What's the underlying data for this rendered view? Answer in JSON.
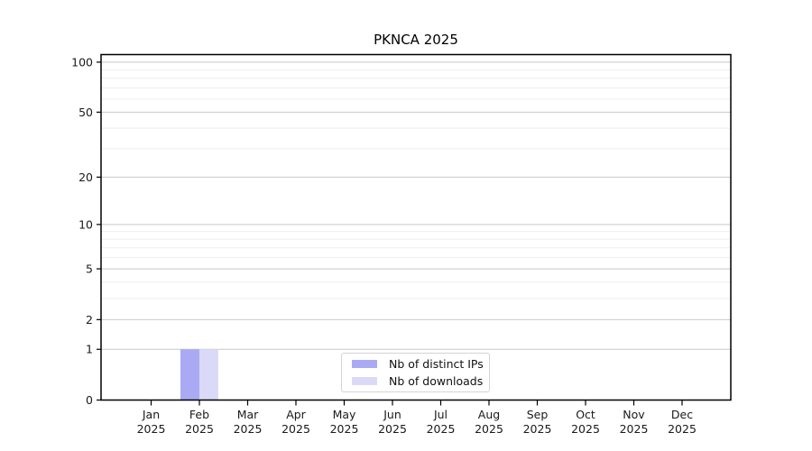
{
  "title": "PKNCA 2025",
  "chart_data": {
    "type": "bar",
    "title": "PKNCA 2025",
    "categories": [
      "Jan",
      "Feb",
      "Mar",
      "Apr",
      "May",
      "Jun",
      "Jul",
      "Aug",
      "Sep",
      "Oct",
      "Nov",
      "Dec"
    ],
    "category_year": "2025",
    "series": [
      {
        "name": "Nb of distinct IPs",
        "color": "#aaaaf4",
        "values": [
          0,
          1,
          0,
          0,
          0,
          0,
          0,
          0,
          0,
          0,
          0,
          0
        ]
      },
      {
        "name": "Nb of downloads",
        "color": "#dadaf8",
        "values": [
          0,
          1,
          0,
          0,
          0,
          0,
          0,
          0,
          0,
          0,
          0,
          0
        ]
      }
    ],
    "y_scale": "log1p",
    "y_ticks": [
      0,
      1,
      2,
      5,
      10,
      20,
      50,
      100
    ],
    "y_minor_ticks": [
      3,
      4,
      6,
      7,
      8,
      9,
      30,
      40,
      60,
      70,
      80,
      90
    ],
    "ylim": [
      0,
      111
    ],
    "xlabel": "",
    "ylabel": "",
    "grid": true,
    "legend_position": "bottom-center"
  },
  "legend": {
    "items": [
      {
        "label": "Nb of distinct IPs",
        "color": "#aaaaf4"
      },
      {
        "label": "Nb of downloads",
        "color": "#dadaf8"
      }
    ]
  },
  "colors": {
    "major_grid": "#c8c8c8",
    "minor_grid": "#eeeeee",
    "frame": "#000000",
    "tick_text": "#1a1a1a"
  }
}
